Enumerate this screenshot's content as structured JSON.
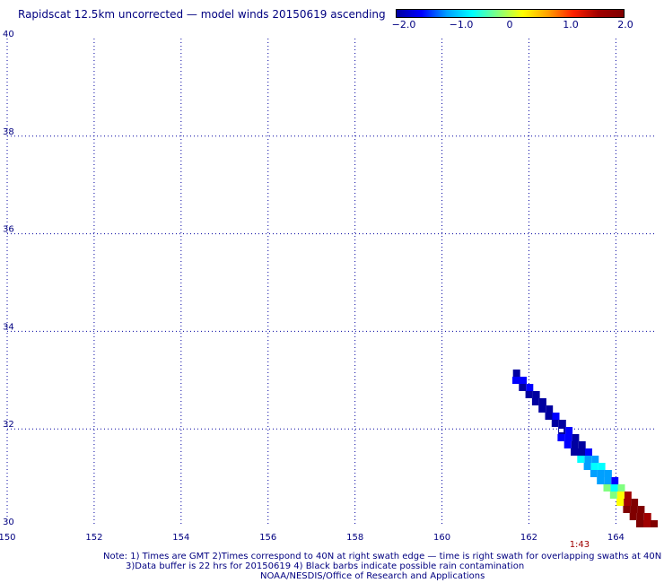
{
  "title": "Rapidscat 12.5km uncorrected — model winds 20150619 ascending",
  "colorbar": {
    "ticks": [
      "−2.0",
      "−1.0",
      "0",
      "1.0",
      "2.0"
    ],
    "range": [
      -2.0,
      2.0
    ],
    "colors": [
      "#0000a0",
      "#0000ff",
      "#00a0ff",
      "#00ffff",
      "#80ff80",
      "#ffff00",
      "#ffa000",
      "#ff2000",
      "#a00000",
      "#800000"
    ]
  },
  "map": {
    "lon_range": [
      150,
      165
    ],
    "lat_range": [
      30,
      40
    ],
    "lon_ticks": [
      "150",
      "152",
      "154",
      "156",
      "158",
      "160",
      "162",
      "164"
    ],
    "lat_ticks": [
      "30",
      "32",
      "34",
      "36",
      "38",
      "40"
    ],
    "grid": "dotted",
    "swath_time": "1:43",
    "swath_time_lon": 163.0,
    "colors": {
      "grid": "#0000a0",
      "labels": "#000080",
      "time": "#a00000"
    }
  },
  "notes": [
    "Note: 1) Times are GMT 2)Times correspond to 40N at right swath edge — time is right swath for overlapping swaths at 40N",
    "3)Data buffer is 22 hrs for 20150619 4) Black barbs indicate possible rain contamination",
    "NOAA/NESDIS/Office of Research and Applications"
  ]
}
